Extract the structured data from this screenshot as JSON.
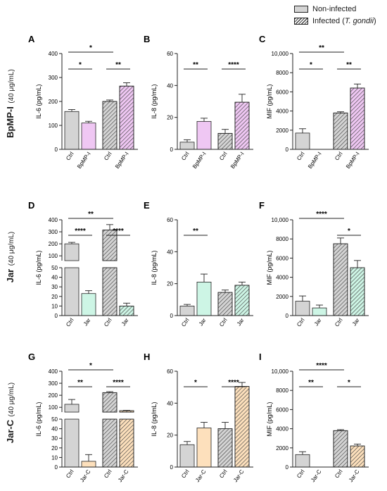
{
  "legend": {
    "noninfected": "Non-infected",
    "infected_prefix": "Infected (",
    "infected_italic": "T. gondii",
    "infected_suffix": ")"
  },
  "rows": [
    {
      "label": "BpMP-I",
      "sublabel": "(40 μg/mL)"
    },
    {
      "label": "Jar",
      "sublabel": "(40 μg/mL)"
    },
    {
      "label": "Jar-C",
      "sublabel": "(40 μg/mL)"
    }
  ],
  "colors": {
    "noninfected": "#d4d4d4",
    "bpmp": "#efc7f3",
    "jar": "#cdf5e5",
    "jarc": "#fde0bc",
    "hatch": "#444444",
    "axis": "#222222"
  },
  "chart_data": [
    {
      "panel": "A",
      "type": "bar",
      "ylabel": "IL-6 (pg/mL)",
      "ylim": [
        0,
        400
      ],
      "yticks": [
        0,
        100,
        200,
        300,
        400
      ],
      "categories": [
        "Ctrl",
        "BpMP-I",
        "Ctrl",
        "BpMP-I"
      ],
      "values": [
        158,
        110,
        200,
        264
      ],
      "errors": [
        8,
        7,
        6,
        14
      ],
      "fills": [
        "noninfected",
        "bpmp",
        "noninfected",
        "bpmp"
      ],
      "hatched": [
        false,
        false,
        true,
        true
      ],
      "sig": [
        {
          "from": 0,
          "to": 1,
          "label": "*"
        },
        {
          "from": 2,
          "to": 3,
          "label": "**"
        },
        {
          "from": 0,
          "to": 2,
          "label": "*"
        }
      ]
    },
    {
      "panel": "B",
      "type": "bar",
      "ylabel": "IL-8 (pg/mL)",
      "ylim": [
        0,
        60
      ],
      "yticks": [
        0,
        20,
        40,
        60
      ],
      "categories": [
        "Ctrl",
        "BpMP-I",
        "Ctrl",
        "BpMP-I"
      ],
      "values": [
        4.5,
        17.5,
        10,
        29.5
      ],
      "errors": [
        1.5,
        2,
        2.5,
        5
      ],
      "fills": [
        "noninfected",
        "bpmp",
        "noninfected",
        "bpmp"
      ],
      "hatched": [
        false,
        false,
        true,
        true
      ],
      "sig": [
        {
          "from": 0,
          "to": 1,
          "label": "**"
        },
        {
          "from": 2,
          "to": 3,
          "label": "****"
        }
      ]
    },
    {
      "panel": "C",
      "type": "bar",
      "ylabel": "MIF (pg/mL)",
      "ylim": [
        0,
        10000
      ],
      "yticks": [
        0,
        2000,
        4000,
        6000,
        8000,
        10000
      ],
      "yticklabels": [
        "0",
        "2000",
        "4000",
        "6000",
        "8000",
        "10,000"
      ],
      "categories": [
        "Ctrl",
        "BpMP-I",
        "Ctrl",
        "BpMP-I"
      ],
      "values": [
        1700,
        0,
        3800,
        6400
      ],
      "errors": [
        450,
        0,
        120,
        420
      ],
      "fills": [
        "noninfected",
        "bpmp",
        "noninfected",
        "bpmp"
      ],
      "hatched": [
        false,
        false,
        true,
        true
      ],
      "sig": [
        {
          "from": 0,
          "to": 1,
          "label": "*"
        },
        {
          "from": 2,
          "to": 3,
          "label": "**"
        },
        {
          "from": 0,
          "to": 2,
          "label": "**"
        }
      ]
    },
    {
      "panel": "D",
      "type": "bar",
      "ylabel": "IL-6 (pg/mL)",
      "broken_axis": true,
      "ylim_low": [
        0,
        50
      ],
      "yticks_low": [
        0,
        10,
        20,
        30,
        40,
        50
      ],
      "ylim_high": [
        60,
        400
      ],
      "yticks_high": [
        100,
        200,
        300,
        400
      ],
      "categories": [
        "Ctrl",
        "Jar",
        "Ctrl",
        "Jar"
      ],
      "values": [
        200,
        23,
        315,
        10
      ],
      "errors": [
        12,
        3,
        45,
        3
      ],
      "fills": [
        "noninfected",
        "jar",
        "noninfected",
        "jar"
      ],
      "hatched": [
        false,
        false,
        true,
        true
      ],
      "sig": [
        {
          "from": 0,
          "to": 1,
          "label": "****"
        },
        {
          "from": 2,
          "to": 3,
          "label": "****"
        },
        {
          "from": 0,
          "to": 2,
          "label": "**"
        }
      ]
    },
    {
      "panel": "E",
      "type": "bar",
      "ylabel": "IL-8 (pg/mL)",
      "ylim": [
        0,
        60
      ],
      "yticks": [
        0,
        20,
        40,
        60
      ],
      "categories": [
        "Ctrl",
        "Jar",
        "Ctrl",
        "Jar"
      ],
      "values": [
        6,
        21,
        14.5,
        19
      ],
      "errors": [
        1,
        5,
        1.5,
        2
      ],
      "fills": [
        "noninfected",
        "jar",
        "noninfected",
        "jar"
      ],
      "hatched": [
        false,
        false,
        true,
        true
      ],
      "sig": [
        {
          "from": 0,
          "to": 1,
          "label": "**"
        }
      ]
    },
    {
      "panel": "F",
      "type": "bar",
      "ylabel": "MIF (pg/mL)",
      "ylim": [
        0,
        10000
      ],
      "yticks": [
        0,
        2000,
        4000,
        6000,
        8000,
        10000
      ],
      "yticklabels": [
        "0",
        "2000",
        "4000",
        "6000",
        "8000",
        "10,000"
      ],
      "categories": [
        "Ctrl",
        "Jar",
        "Ctrl",
        "Jar"
      ],
      "values": [
        1500,
        800,
        7500,
        5000
      ],
      "errors": [
        550,
        300,
        600,
        750
      ],
      "fills": [
        "noninfected",
        "jar",
        "noninfected",
        "jar"
      ],
      "hatched": [
        false,
        false,
        true,
        true
      ],
      "sig": [
        {
          "from": 2,
          "to": 3,
          "label": "*"
        },
        {
          "from": 0,
          "to": 2,
          "label": "****"
        }
      ]
    },
    {
      "panel": "G",
      "type": "bar",
      "ylabel": "IL-6 (pg/mL)",
      "broken_axis": true,
      "ylim_low": [
        0,
        50
      ],
      "yticks_low": [
        0,
        10,
        20,
        30,
        40,
        50
      ],
      "ylim_high": [
        60,
        400
      ],
      "yticks_high": [
        100,
        200,
        300,
        400
      ],
      "categories": [
        "Ctrl",
        "Jar-C",
        "Ctrl",
        "Jar-C"
      ],
      "values": [
        125,
        6,
        222,
        72
      ],
      "errors": [
        40,
        7,
        8,
        3
      ],
      "fills": [
        "noninfected",
        "jarc",
        "noninfected",
        "jarc"
      ],
      "hatched": [
        false,
        false,
        true,
        true
      ],
      "sig": [
        {
          "from": 0,
          "to": 1,
          "label": "**"
        },
        {
          "from": 2,
          "to": 3,
          "label": "****"
        },
        {
          "from": 0,
          "to": 2,
          "label": "*"
        }
      ]
    },
    {
      "panel": "H",
      "type": "bar",
      "ylabel": "IL-8 (pg/mL)",
      "ylim": [
        0,
        60
      ],
      "yticks": [
        0,
        20,
        40,
        60
      ],
      "categories": [
        "Ctrl",
        "Jar-C",
        "Ctrl",
        "Jar-C"
      ],
      "values": [
        14,
        24.5,
        24,
        50.5
      ],
      "errors": [
        2,
        3.5,
        4,
        2.5
      ],
      "fills": [
        "noninfected",
        "jarc",
        "noninfected",
        "jarc"
      ],
      "hatched": [
        false,
        false,
        true,
        true
      ],
      "sig": [
        {
          "from": 0,
          "to": 1,
          "label": "*"
        },
        {
          "from": 2,
          "to": 3,
          "label": "****"
        }
      ]
    },
    {
      "panel": "I",
      "type": "bar",
      "ylabel": "MIF (pg/mL)",
      "ylim": [
        0,
        10000
      ],
      "yticks": [
        0,
        2000,
        4000,
        6000,
        8000,
        10000
      ],
      "yticklabels": [
        "0",
        "2000",
        "4000",
        "6000",
        "8000",
        "10,000"
      ],
      "categories": [
        "Ctrl",
        "Jar-C",
        "Ctrl",
        "Jar-C"
      ],
      "values": [
        1300,
        0,
        3800,
        2200
      ],
      "errors": [
        300,
        0,
        100,
        200
      ],
      "fills": [
        "noninfected",
        "jarc",
        "noninfected",
        "jarc"
      ],
      "hatched": [
        false,
        false,
        true,
        true
      ],
      "sig": [
        {
          "from": 0,
          "to": 1,
          "label": "**"
        },
        {
          "from": 2,
          "to": 3,
          "label": "*"
        },
        {
          "from": 0,
          "to": 2,
          "label": "****"
        }
      ]
    }
  ]
}
